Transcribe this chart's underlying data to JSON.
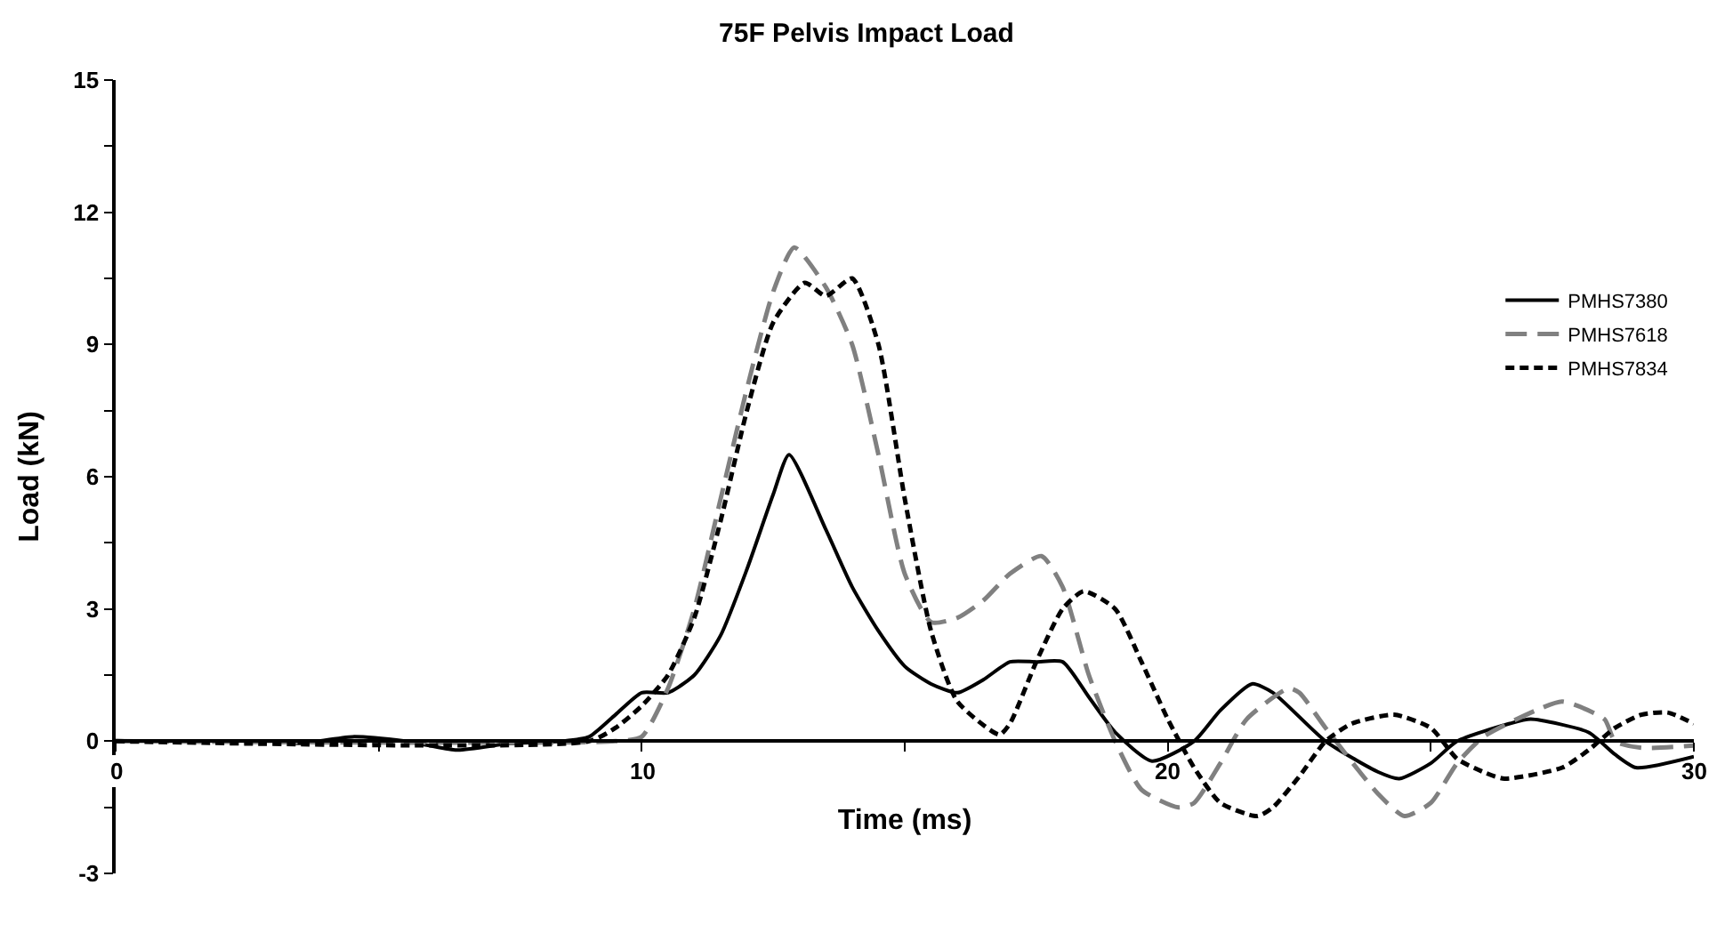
{
  "chart_data": {
    "type": "line",
    "title": "75F Pelvis Impact Load",
    "xlabel": "Time (ms)",
    "ylabel": "Load (kN)",
    "xlim": [
      0,
      30
    ],
    "xticks": [
      0,
      {
        "value": 5,
        "label": null
      },
      10,
      {
        "value": 15,
        "label": null
      },
      20,
      {
        "value": 25,
        "label": null
      },
      30
    ],
    "ylim": [
      -3,
      15
    ],
    "yticks": [
      -3,
      {
        "value": -1.5,
        "label": null
      },
      0,
      {
        "value": 1.5,
        "label": null
      },
      3,
      {
        "value": 4.5,
        "label": null
      },
      6,
      {
        "value": 7.5,
        "label": null
      },
      9,
      {
        "value": 10.5,
        "label": null
      },
      12,
      {
        "value": 13.5,
        "label": null
      },
      15
    ],
    "legend": "right",
    "marker": "none",
    "series": [
      {
        "name": "PMHS7380",
        "color": "#000000",
        "line_style": "solid",
        "x": [
          0,
          3,
          3.5,
          4.5,
          5.5,
          6.5,
          7.5,
          8.5,
          9,
          9.5,
          10,
          10.5,
          11,
          11.5,
          12,
          12.5,
          12.8,
          13.5,
          14,
          14.5,
          15,
          15.5,
          16,
          16.5,
          17,
          17.5,
          18,
          18.5,
          19,
          19.7,
          20.5,
          21,
          21.6,
          22,
          23,
          24,
          24.4,
          25,
          25.5,
          26.5,
          26.9,
          28,
          28.5,
          28.9,
          30
        ],
        "values": [
          0,
          0,
          -0.05,
          0.1,
          0,
          -0.2,
          -0.05,
          0,
          0.1,
          0.6,
          1.1,
          1.1,
          1.5,
          2.4,
          3.9,
          5.6,
          6.5,
          4.8,
          3.5,
          2.5,
          1.7,
          1.3,
          1.1,
          1.4,
          1.8,
          1.8,
          1.8,
          1.0,
          0.2,
          -0.45,
          0,
          0.7,
          1.3,
          1.1,
          0,
          -0.7,
          -0.85,
          -0.5,
          0,
          0.4,
          0.5,
          0.2,
          -0.3,
          -0.6,
          -0.35
        ]
      },
      {
        "name": "PMHS7618",
        "color": "#808080",
        "line_style": "dashed",
        "x": [
          0,
          9.5,
          10,
          10.5,
          11,
          11.5,
          12,
          12.5,
          12.9,
          13.5,
          14,
          14.5,
          15,
          15.5,
          16,
          16.5,
          17,
          17.6,
          18,
          18.5,
          19,
          19.5,
          20.2,
          20.5,
          21,
          21.5,
          22.3,
          22.5,
          23,
          24,
          24.5,
          25,
          25.5,
          26,
          27,
          27.5,
          28.3,
          28.5,
          29,
          30
        ],
        "values": [
          0,
          0,
          0.1,
          1.2,
          3,
          5.5,
          8,
          10.2,
          11.2,
          10.3,
          9,
          6.5,
          3.8,
          2.7,
          2.8,
          3.2,
          3.8,
          4.2,
          3.5,
          1.5,
          0,
          -1.1,
          -1.5,
          -1.4,
          -0.5,
          0.5,
          1.2,
          1.1,
          0.3,
          -1.2,
          -1.7,
          -1.4,
          -0.5,
          0.1,
          0.7,
          0.9,
          0.5,
          0,
          -0.15,
          -0.1
        ]
      },
      {
        "name": "PMHS7834",
        "color": "#000000",
        "line_style": "dotted",
        "x": [
          0,
          9,
          9.5,
          10,
          10.5,
          11,
          11.5,
          12,
          12.5,
          13.1,
          13.5,
          14,
          14.5,
          15,
          15.5,
          16,
          16.8,
          17,
          17.5,
          18,
          18.4,
          19,
          19.5,
          20,
          20.5,
          21,
          21.7,
          22,
          22.5,
          23,
          23.5,
          24.3,
          25,
          25.5,
          26,
          26.4,
          27.5,
          28,
          28.5,
          29,
          29.5,
          30
        ],
        "values": [
          0,
          0,
          0.3,
          0.8,
          1.5,
          2.8,
          5,
          7.5,
          9.5,
          10.4,
          10.1,
          10.5,
          9,
          5.5,
          2.5,
          0.9,
          0.15,
          0.4,
          1.8,
          3.0,
          3.4,
          3.0,
          1.8,
          0.5,
          -0.6,
          -1.4,
          -1.7,
          -1.5,
          -0.8,
          0,
          0.4,
          0.6,
          0.3,
          -0.4,
          -0.7,
          -0.85,
          -0.6,
          -0.2,
          0.3,
          0.6,
          0.65,
          0.4
        ]
      }
    ]
  }
}
